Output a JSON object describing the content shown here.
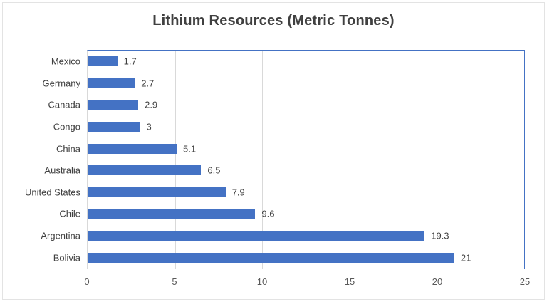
{
  "title": "Lithium Resources (Metric Tonnes)",
  "colors": {
    "bar": "#4472C4",
    "plot_border": "#4472C4",
    "gridline": "#D9D9D9",
    "axis_line": "#D9D9D9",
    "title_text": "#404040",
    "label_text": "#404040",
    "tick_text": "#595959",
    "outer_border": "#E3E3E3"
  },
  "chart_data": {
    "type": "bar",
    "orientation": "horizontal",
    "title": "Lithium Resources (Metric Tonnes)",
    "categories": [
      "Mexico",
      "Germany",
      "Canada",
      "Congo",
      "China",
      "Australia",
      "United States",
      "Chile",
      "Argentina",
      "Bolivia"
    ],
    "values": [
      1.7,
      2.7,
      2.9,
      3,
      5.1,
      6.5,
      7.9,
      9.6,
      19.3,
      21
    ],
    "data_labels": [
      "1.7",
      "2.7",
      "2.9",
      "3",
      "5.1",
      "6.5",
      "7.9",
      "9.6",
      "19.3",
      "21"
    ],
    "xlabel": "",
    "ylabel": "",
    "xlim": [
      0,
      25
    ],
    "xticks": [
      0,
      5,
      10,
      15,
      20,
      25
    ],
    "grid": true,
    "legend": false
  }
}
